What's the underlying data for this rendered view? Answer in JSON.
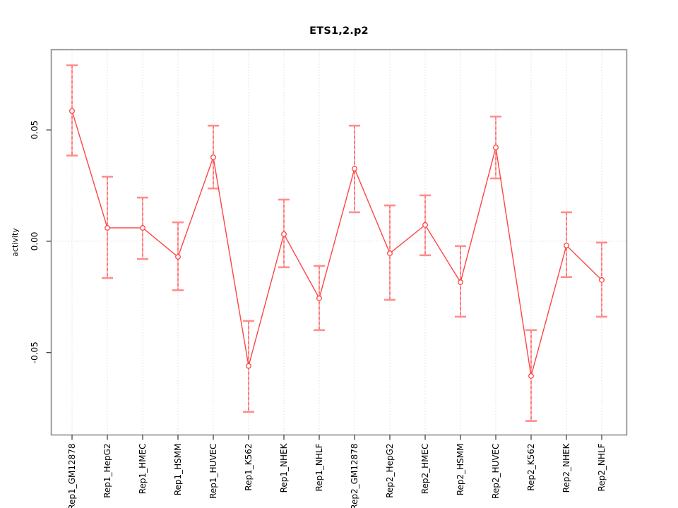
{
  "title": "ETS1,2.p2",
  "chart_data": {
    "type": "line",
    "title": "ETS1,2.p2",
    "xlabel": "",
    "ylabel": "activity",
    "categories": [
      "Rep1_GM12878",
      "Rep1_HepG2",
      "Rep1_HMEC",
      "Rep1_HSMM",
      "Rep1_HUVEC",
      "Rep1_K562",
      "Rep1_NHEK",
      "Rep1_NHLF",
      "Rep2_GM12878",
      "Rep2_HepG2",
      "Rep2_HMEC",
      "Rep2_HSMM",
      "Rep2_HUVEC",
      "Rep2_K562",
      "Rep2_NHEK",
      "Rep2_NHLF"
    ],
    "series": [
      {
        "name": "activity",
        "values": [
          0.0585,
          0.006,
          0.006,
          -0.007,
          0.0377,
          -0.056,
          0.0032,
          -0.0256,
          0.0326,
          -0.0054,
          0.0073,
          -0.0184,
          0.0421,
          -0.0605,
          -0.0019,
          -0.0174
        ],
        "ci_lower": [
          0.0385,
          -0.0165,
          -0.008,
          -0.022,
          0.0237,
          -0.0766,
          -0.0117,
          -0.0399,
          0.013,
          -0.0263,
          -0.0063,
          -0.0339,
          0.0282,
          -0.0807,
          -0.0161,
          -0.0339
        ],
        "ci_upper": [
          0.079,
          0.029,
          0.0196,
          0.0085,
          0.0519,
          -0.0358,
          0.0187,
          -0.0111,
          0.0519,
          0.0161,
          0.0206,
          -0.0022,
          0.056,
          -0.0399,
          0.013,
          -0.0006
        ]
      }
    ],
    "ylim": [
      -0.087,
      0.086
    ],
    "yticks": [
      {
        "value": 0.05,
        "label": "0.05"
      },
      {
        "value": 0.0,
        "label": "0.00"
      },
      {
        "value": -0.05,
        "label": "-0.05"
      }
    ],
    "marker": "open-circle",
    "legend": {
      "visible": false
    },
    "grid": {
      "vertical_per_category": true,
      "horizontal_at_zero": true,
      "style": "dotted"
    },
    "colors": {
      "line": "#ff4444",
      "point": "#ff4444",
      "error_cap": "#ff8d8d",
      "error_stem_solid": "#ffb3b3",
      "error_stem_dash": "#ff5c5c",
      "box": "#848484",
      "grid": "#dedede",
      "tick": "#333333",
      "text": "#000000",
      "background": "#ffffff"
    }
  }
}
